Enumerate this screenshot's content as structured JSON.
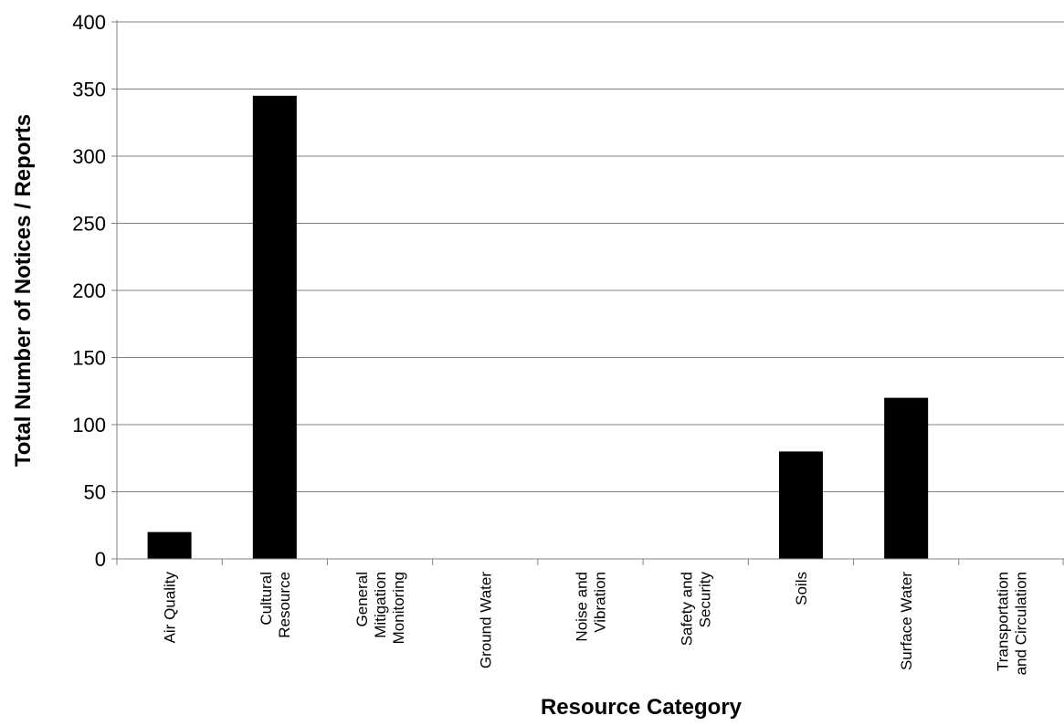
{
  "chart_data": {
    "type": "bar",
    "title": "",
    "xlabel": "Resource Category",
    "ylabel": "Total Number of Notices / Reports",
    "ylim": [
      0,
      400
    ],
    "yticks": [
      0,
      50,
      100,
      150,
      200,
      250,
      300,
      350,
      400
    ],
    "grid": "horizontal",
    "bar_color": "#000000",
    "categories": [
      [
        "Air Quality"
      ],
      [
        "Cultural",
        "Resource"
      ],
      [
        "General",
        "Mitigation",
        "Monitoring"
      ],
      [
        "Ground Water"
      ],
      [
        "Noise and",
        "Vibration"
      ],
      [
        "Safety and",
        "Security"
      ],
      [
        "Soils"
      ],
      [
        "Surface Water"
      ],
      [
        "Transportation",
        "and Circulation"
      ]
    ],
    "values": [
      20,
      345,
      0,
      0,
      0,
      0,
      80,
      120,
      0
    ]
  }
}
